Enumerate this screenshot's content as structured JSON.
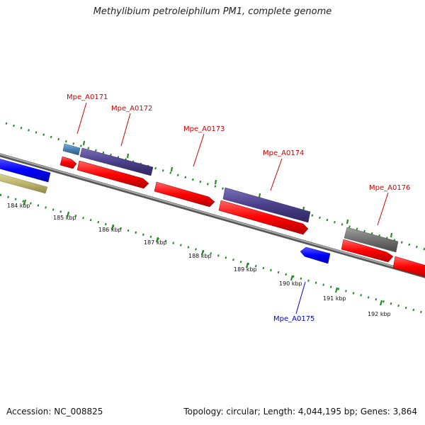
{
  "title": "Methylibium petroleiphilum PM1, complete genome",
  "footer": {
    "accession_label": "Accession:",
    "accession": "NC_008825",
    "topology": "Topology: circular; Length: 4,044,195 bp; Genes: 3,864"
  },
  "scale": {
    "ticks": [
      "184 kbp",
      "185 kbp",
      "186 kbp",
      "187 kbp",
      "188 kbp",
      "189 kbp",
      "190 kbp",
      "191 kbp",
      "192 kbp"
    ]
  },
  "gene_labels": [
    {
      "id": "Mpe_A0171",
      "color": "#cc0000"
    },
    {
      "id": "Mpe_A0172",
      "color": "#cc0000"
    },
    {
      "id": "Mpe_A0173",
      "color": "#cc0000"
    },
    {
      "id": "Mpe_A0174",
      "color": "#cc0000"
    },
    {
      "id": "Mpe_A0176",
      "color": "#cc0000"
    },
    {
      "id": "Mpe_A0175",
      "color": "#0000cc"
    }
  ],
  "colors": {
    "backbone": "#888888",
    "cds_forward": "#ff0000",
    "cds_reverse": "#0000ff",
    "feature_purple": "#4a3f8a",
    "feature_steelblue": "#4682b4",
    "feature_gray": "#707070",
    "feature_khaki": "#bdb76b",
    "tick_green": "#228b22"
  }
}
